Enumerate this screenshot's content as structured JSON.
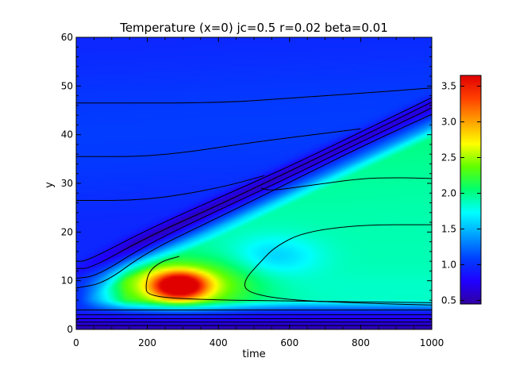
{
  "chart_data": {
    "type": "heatmap",
    "title": "Temperature (x=0) jc=0.5 r=0.02 beta=0.01",
    "xlabel": "time",
    "ylabel": "y",
    "xlim": [
      0,
      1000
    ],
    "ylim": [
      0,
      60
    ],
    "x_ticks": [
      {
        "value": 0,
        "label": "0"
      },
      {
        "value": 200,
        "label": "200"
      },
      {
        "value": 400,
        "label": "400"
      },
      {
        "value": 600,
        "label": "600"
      },
      {
        "value": 800,
        "label": "800"
      },
      {
        "value": 1000,
        "label": "1000"
      }
    ],
    "y_ticks": [
      {
        "value": 0,
        "label": "0"
      },
      {
        "value": 10,
        "label": "10"
      },
      {
        "value": 20,
        "label": "20"
      },
      {
        "value": 30,
        "label": "30"
      },
      {
        "value": 40,
        "label": "40"
      },
      {
        "value": 50,
        "label": "50"
      },
      {
        "value": 60,
        "label": "60"
      }
    ],
    "colorbar": {
      "range": [
        0.45,
        3.65
      ],
      "ticks": [
        {
          "value": 0.5,
          "label": "0.5"
        },
        {
          "value": 1.0,
          "label": "1.0"
        },
        {
          "value": 1.5,
          "label": "1.5"
        },
        {
          "value": 2.0,
          "label": "2.0"
        },
        {
          "value": 2.5,
          "label": "2.5"
        },
        {
          "value": 3.0,
          "label": "3.0"
        },
        {
          "value": 3.5,
          "label": "3.5"
        }
      ],
      "colormap": [
        "#3000a0",
        "#2000ff",
        "#0040ff",
        "#00a0ff",
        "#00ffff",
        "#00ff70",
        "#60ff00",
        "#ffff00",
        "#ffa000",
        "#ff4000",
        "#e00000"
      ]
    },
    "field_features": {
      "background_level": 0.95,
      "bottom_boundary_level": 0.5,
      "hot_spot": {
        "time": 290,
        "y": 9,
        "peak": 3.6
      },
      "cold_front": {
        "start_time": 0,
        "start_y": 12,
        "end_time": 1000,
        "end_y": 46,
        "level": 0.55
      },
      "warm_wedge_top_at_1000": 41
    },
    "contours": [
      {
        "name": "contour-upper-1",
        "points": [
          [
            0,
            46.5
          ],
          [
            400,
            46.5
          ],
          [
            600,
            47.5
          ],
          [
            800,
            48.5
          ],
          [
            1000,
            49.6
          ]
        ]
      },
      {
        "name": "contour-upper-2",
        "points": [
          [
            0,
            35.5
          ],
          [
            230,
            35.5
          ],
          [
            500,
            38.5
          ],
          [
            800,
            41.2
          ]
        ]
      },
      {
        "name": "contour-upper-3",
        "points": [
          [
            0,
            26.5
          ],
          [
            200,
            26.5
          ],
          [
            400,
            29
          ],
          [
            530,
            31.6
          ]
        ]
      },
      {
        "name": "contour-front-1",
        "points": [
          [
            0,
            14
          ],
          [
            30,
            14
          ],
          [
            200,
            20.5
          ],
          [
            400,
            27
          ],
          [
            600,
            33.5
          ],
          [
            800,
            40.5
          ],
          [
            1000,
            47.6
          ]
        ]
      },
      {
        "name": "contour-front-2",
        "points": [
          [
            0,
            12.5
          ],
          [
            40,
            12.5
          ],
          [
            200,
            19
          ],
          [
            400,
            25.5
          ],
          [
            600,
            32.5
          ],
          [
            800,
            39.5
          ],
          [
            1000,
            46.7
          ]
        ]
      },
      {
        "name": "contour-front-3",
        "points": [
          [
            0,
            10.5
          ],
          [
            60,
            11
          ],
          [
            200,
            17.5
          ],
          [
            400,
            24.5
          ],
          [
            600,
            31.3
          ],
          [
            800,
            38.5
          ],
          [
            1000,
            45.5
          ]
        ]
      },
      {
        "name": "contour-front-4",
        "points": [
          [
            0,
            8.5
          ],
          [
            80,
            9.5
          ],
          [
            200,
            16
          ],
          [
            400,
            23
          ],
          [
            600,
            30.2
          ],
          [
            800,
            37.5
          ],
          [
            1000,
            44.2
          ]
        ]
      },
      {
        "name": "contour-warm-zone",
        "points": [
          [
            1000,
            5
          ],
          [
            800,
            5.4
          ],
          [
            600,
            6
          ],
          [
            480,
            7.5
          ],
          [
            470,
            10
          ],
          [
            520,
            14
          ],
          [
            560,
            17
          ],
          [
            640,
            20
          ],
          [
            800,
            21.5
          ],
          [
            1000,
            21.5
          ]
        ]
      },
      {
        "name": "contour-warm-inner",
        "points": [
          [
            1000,
            31
          ],
          [
            900,
            31.2
          ],
          [
            800,
            31
          ],
          [
            650,
            29.5
          ],
          [
            550,
            28.5
          ],
          [
            520,
            29
          ]
        ]
      },
      {
        "name": "contour-hot-region",
        "points": [
          [
            1000,
            5.5
          ],
          [
            600,
            5.8
          ],
          [
            300,
            6.2
          ],
          [
            200,
            7
          ],
          [
            195,
            9
          ],
          [
            205,
            12
          ],
          [
            240,
            14
          ],
          [
            290,
            15
          ]
        ]
      },
      {
        "name": "contour-bottom-1",
        "points": [
          [
            0,
            4
          ],
          [
            1000,
            4
          ]
        ]
      },
      {
        "name": "contour-bottom-2",
        "points": [
          [
            0,
            3
          ],
          [
            1000,
            3
          ]
        ]
      },
      {
        "name": "contour-bottom-3",
        "points": [
          [
            0,
            2.2
          ],
          [
            1000,
            2.2
          ]
        ]
      },
      {
        "name": "contour-bottom-4",
        "points": [
          [
            0,
            1.5
          ],
          [
            1000,
            1.5
          ]
        ]
      },
      {
        "name": "contour-bottom-5",
        "points": [
          [
            0,
            0.8
          ],
          [
            1000,
            0.8
          ]
        ]
      }
    ]
  }
}
